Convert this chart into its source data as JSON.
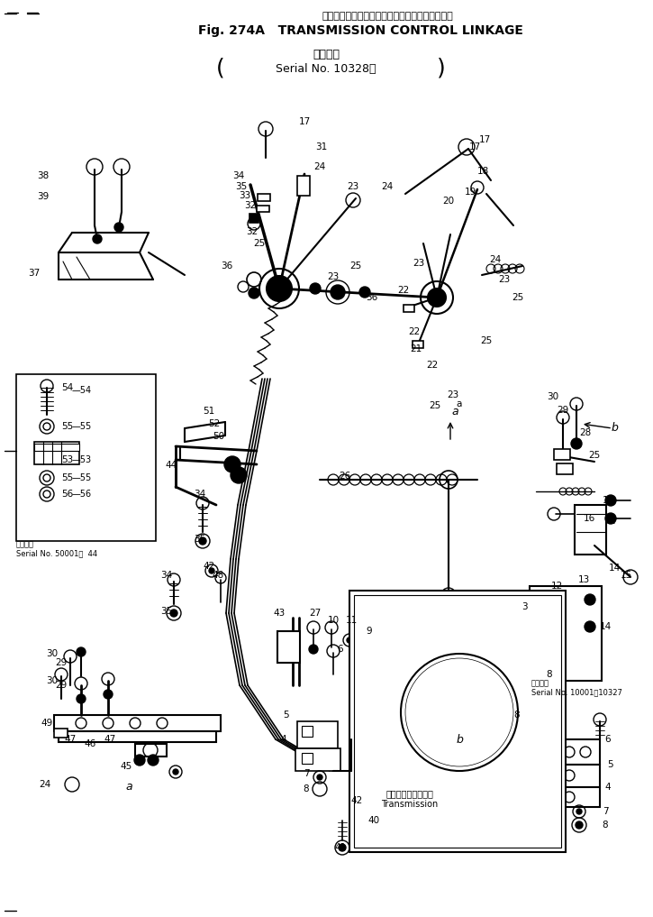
{
  "title_jp": "トランスミッション　コントロール　リンケージ",
  "title_en": "Fig. 274A   TRANSMISSION CONTROL LINKAGE",
  "subtitle_jp": "適用号機",
  "subtitle_serial": "Serial No. 10328～",
  "bg_color": "#ffffff",
  "fig_width": 7.25,
  "fig_height": 10.17,
  "dpi": 100
}
